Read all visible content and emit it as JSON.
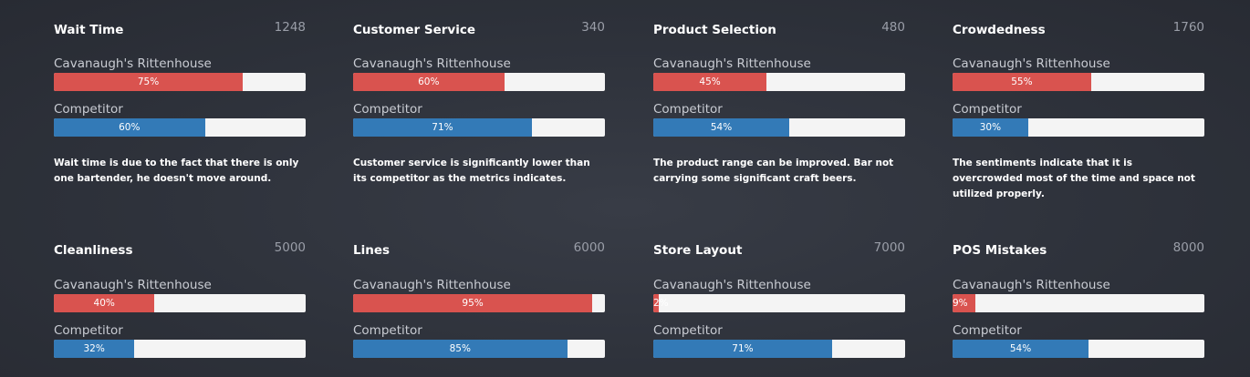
{
  "colors": {
    "ours": "#d9534f",
    "competitor": "#337ab7",
    "track": "#f4f4f4",
    "background": "#2e323b"
  },
  "cards": [
    {
      "title": "Wait Time",
      "count": "1248",
      "ours_label": "Cavanaugh's Rittenhouse",
      "ours_value": 75,
      "ours_text": "75%",
      "comp_label": "Competitor",
      "comp_value": 60,
      "comp_text": "60%",
      "note": "Wait time is due to the fact that there is only one bartender, he doesn't move around."
    },
    {
      "title": "Customer Service",
      "count": "340",
      "ours_label": "Cavanaugh's Rittenhouse",
      "ours_value": 60,
      "ours_text": "60%",
      "comp_label": "Competitor",
      "comp_value": 71,
      "comp_text": "71%",
      "note": "Customer service is significantly lower than its competitor as the metrics indicates."
    },
    {
      "title": "Product Selection",
      "count": "480",
      "ours_label": "Cavanaugh's Rittenhouse",
      "ours_value": 45,
      "ours_text": "45%",
      "comp_label": "Competitor",
      "comp_value": 54,
      "comp_text": "54%",
      "note": "The product range can be improved. Bar not carrying some significant craft beers."
    },
    {
      "title": "Crowdedness",
      "count": "1760",
      "ours_label": "Cavanaugh's Rittenhouse",
      "ours_value": 55,
      "ours_text": "55%",
      "comp_label": "Competitor",
      "comp_value": 30,
      "comp_text": "30%",
      "note": "The sentiments indicate that it is overcrowded most of the time and space not utilized properly."
    },
    {
      "title": "Cleanliness",
      "count": "5000",
      "ours_label": "Cavanaugh's Rittenhouse",
      "ours_value": 40,
      "ours_text": "40%",
      "comp_label": "Competitor",
      "comp_value": 32,
      "comp_text": "32%",
      "note": ""
    },
    {
      "title": "Lines",
      "count": "6000",
      "ours_label": "Cavanaugh's Rittenhouse",
      "ours_value": 95,
      "ours_text": "95%",
      "comp_label": "Competitor",
      "comp_value": 85,
      "comp_text": "85%",
      "note": ""
    },
    {
      "title": "Store Layout",
      "count": "7000",
      "ours_label": "Cavanaugh's Rittenhouse",
      "ours_value": 2,
      "ours_text": "2%",
      "comp_label": "Competitor",
      "comp_value": 71,
      "comp_text": "71%",
      "note": ""
    },
    {
      "title": "POS Mistakes",
      "count": "8000",
      "ours_label": "Cavanaugh's Rittenhouse",
      "ours_value": 9,
      "ours_text": "9%",
      "comp_label": "Competitor",
      "comp_value": 54,
      "comp_text": "54%",
      "note": ""
    }
  ]
}
